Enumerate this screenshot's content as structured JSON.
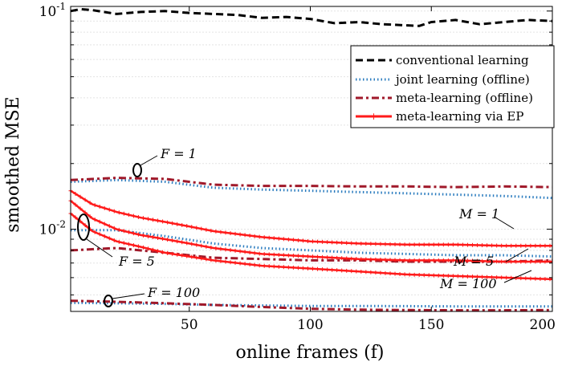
{
  "chart_data": {
    "type": "line",
    "xlabel": "online frames (f)",
    "ylabel": "smoothed MSE",
    "xlim": [
      1,
      200
    ],
    "ylim": [
      0.0042,
      0.105
    ],
    "yscale": "log",
    "grid": "minor-y",
    "legend_position": "top-right",
    "x_ticks": [
      "50",
      "100",
      "150",
      "200"
    ],
    "y_ticks": [
      {
        "base": "10",
        "exp": "-1",
        "value": 0.1
      },
      {
        "base": "10",
        "exp": "-2",
        "value": 0.01
      }
    ],
    "legend": [
      {
        "label": "conventional learning",
        "style": "dashed-black"
      },
      {
        "label": "joint learning (offline)",
        "style": "dotted-blue"
      },
      {
        "label": "meta-learning (offline)",
        "style": "dashdot-darkred"
      },
      {
        "label": "meta-learning via EP",
        "style": "solid-red-markers"
      }
    ],
    "annotations": [
      {
        "text": "F = 1"
      },
      {
        "text": "F = 5"
      },
      {
        "text": "F = 100"
      },
      {
        "text": "M = 1"
      },
      {
        "text": "M = 5"
      },
      {
        "text": "M = 100"
      }
    ],
    "series": [
      {
        "name": "conventional learning",
        "style": "dashed-black",
        "x": [
          1,
          5,
          10,
          20,
          30,
          40,
          50,
          60,
          70,
          80,
          90,
          100,
          110,
          120,
          130,
          140,
          145,
          150,
          160,
          170,
          180,
          190,
          200
        ],
        "values": [
          0.1,
          0.102,
          0.101,
          0.097,
          0.099,
          0.1,
          0.098,
          0.097,
          0.096,
          0.093,
          0.094,
          0.092,
          0.088,
          0.089,
          0.087,
          0.086,
          0.0855,
          0.089,
          0.091,
          0.087,
          0.089,
          0.091,
          0.09
        ]
      },
      {
        "style": "dotted-blue",
        "x": [
          1,
          20,
          40,
          60,
          80,
          100,
          120,
          140,
          160,
          180,
          200
        ],
        "values": [
          0.0165,
          0.0168,
          0.0165,
          0.0155,
          0.0152,
          0.015,
          0.0148,
          0.0146,
          0.0144,
          0.0142,
          0.0139
        ]
      },
      {
        "style": "dashdot-darkred",
        "x": [
          1,
          20,
          40,
          60,
          80,
          100,
          120,
          140,
          160,
          180,
          200
        ],
        "values": [
          0.0168,
          0.0172,
          0.017,
          0.016,
          0.0158,
          0.0158,
          0.0157,
          0.0157,
          0.0156,
          0.0157,
          0.0156
        ]
      },
      {
        "style": "dotted-blue",
        "x": [
          1,
          20,
          40,
          60,
          80,
          100,
          120,
          140,
          160,
          180,
          200
        ],
        "values": [
          0.0099,
          0.0099,
          0.0093,
          0.0086,
          0.0082,
          0.008,
          0.0078,
          0.0077,
          0.0076,
          0.0076,
          0.0075
        ]
      },
      {
        "style": "dashdot-darkred",
        "x": [
          1,
          20,
          40,
          60,
          80,
          100,
          120,
          140,
          160,
          180,
          200
        ],
        "values": [
          0.008,
          0.0082,
          0.0078,
          0.0074,
          0.0073,
          0.0072,
          0.0072,
          0.0071,
          0.0071,
          0.0071,
          0.0072
        ]
      },
      {
        "style": "dotted-blue",
        "x": [
          1,
          20,
          40,
          60,
          80,
          100,
          120,
          140,
          160,
          180,
          200
        ],
        "values": [
          0.0046,
          0.00458,
          0.00455,
          0.0045,
          0.00447,
          0.00445,
          0.00445,
          0.00444,
          0.00443,
          0.00443,
          0.00443
        ]
      },
      {
        "style": "dashdot-darkred",
        "x": [
          1,
          20,
          40,
          60,
          80,
          100,
          120,
          140,
          160,
          180,
          200
        ],
        "values": [
          0.0047,
          0.00465,
          0.00458,
          0.0045,
          0.0044,
          0.00432,
          0.00428,
          0.00426,
          0.00425,
          0.00425,
          0.00426
        ]
      },
      {
        "style": "solid-red-markers",
        "annotation": "M = 1",
        "x": [
          1,
          10,
          20,
          30,
          40,
          50,
          60,
          80,
          100,
          120,
          140,
          160,
          180,
          200
        ],
        "values": [
          0.015,
          0.013,
          0.012,
          0.0113,
          0.0108,
          0.0103,
          0.0098,
          0.0092,
          0.0088,
          0.0086,
          0.0085,
          0.0085,
          0.0084,
          0.0084
        ]
      },
      {
        "style": "solid-red-markers",
        "annotation": "M = 5",
        "x": [
          1,
          10,
          20,
          30,
          40,
          50,
          60,
          80,
          100,
          120,
          140,
          160,
          180,
          200
        ],
        "values": [
          0.0135,
          0.0112,
          0.01,
          0.0094,
          0.009,
          0.0086,
          0.0082,
          0.0077,
          0.0075,
          0.0073,
          0.0072,
          0.0072,
          0.0071,
          0.0071
        ]
      },
      {
        "style": "solid-red-markers",
        "annotation": "M = 100",
        "x": [
          1,
          10,
          20,
          30,
          40,
          50,
          60,
          80,
          100,
          120,
          140,
          160,
          180,
          200
        ],
        "values": [
          0.0118,
          0.0098,
          0.0088,
          0.0083,
          0.0078,
          0.0075,
          0.0072,
          0.0068,
          0.0066,
          0.0064,
          0.0062,
          0.0061,
          0.006,
          0.0059
        ]
      }
    ]
  }
}
